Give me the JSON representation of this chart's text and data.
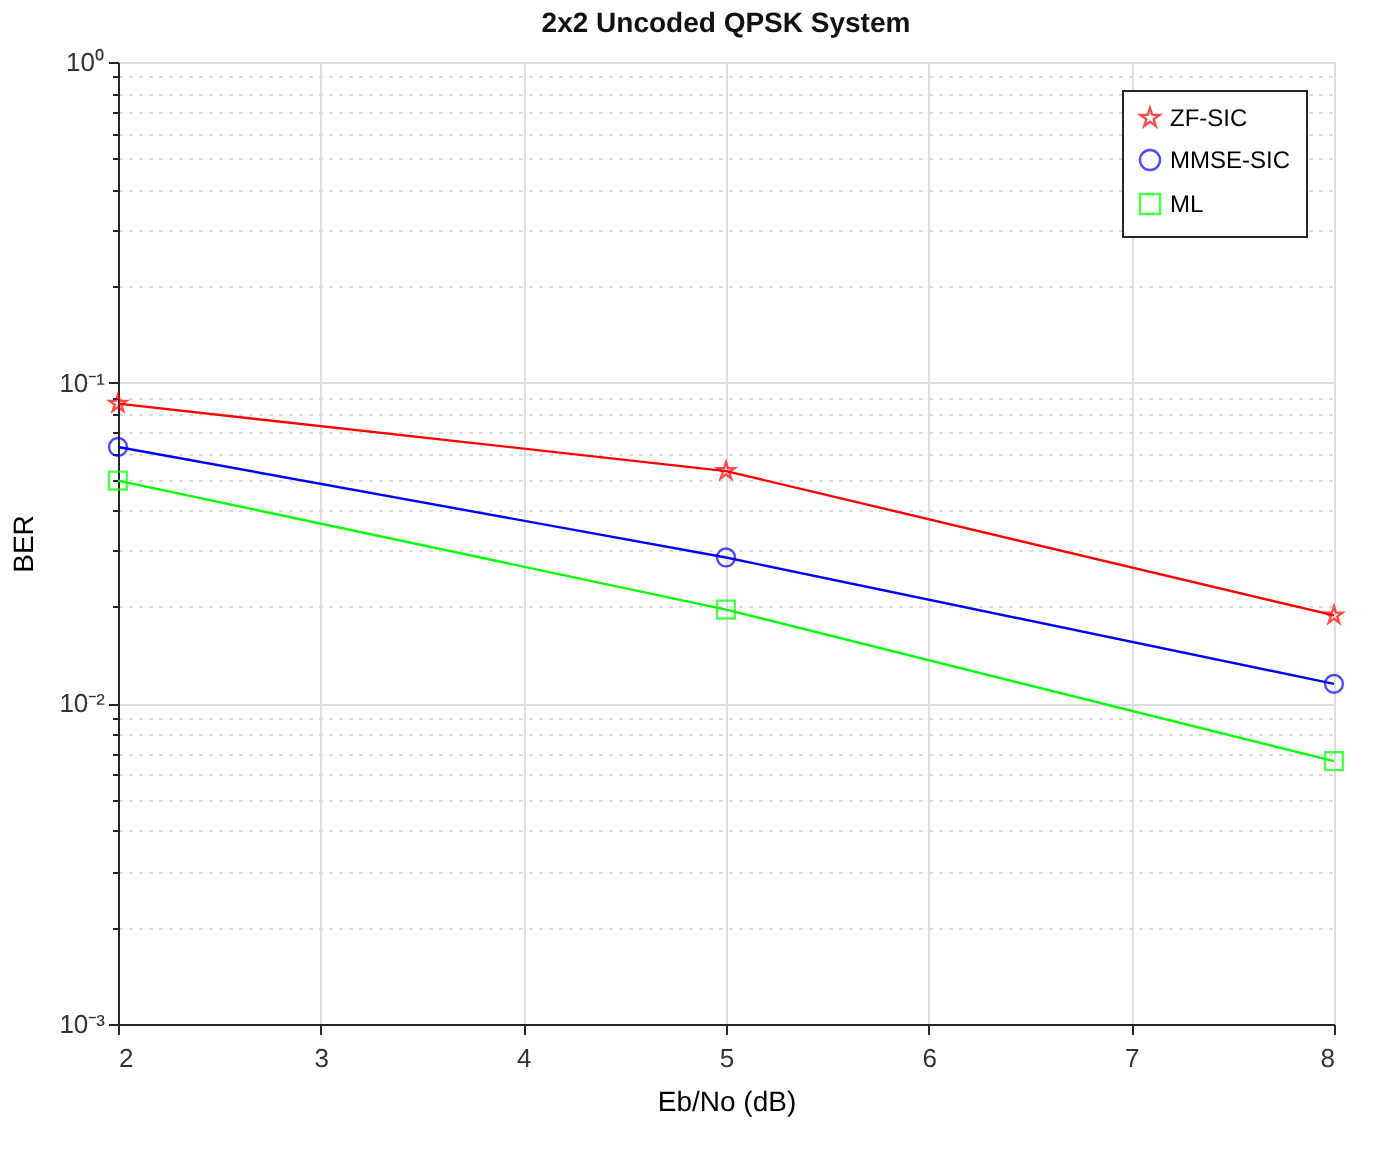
{
  "chart_data": {
    "type": "line",
    "title": "2x2 Uncoded QPSK System",
    "xlabel": "Eb/No (dB)",
    "ylabel": "BER",
    "x": [
      2,
      5,
      8
    ],
    "series": [
      {
        "name": "ZF-SIC",
        "color": "#ff0000",
        "marker": "star",
        "values": [
          0.086,
          0.053,
          0.0188
        ]
      },
      {
        "name": "MMSE-SIC",
        "color": "#0000ff",
        "marker": "circle",
        "values": [
          0.063,
          0.0285,
          0.0115
        ]
      },
      {
        "name": "ML",
        "color": "#00ff00",
        "marker": "square",
        "values": [
          0.0495,
          0.0196,
          0.0066
        ]
      }
    ],
    "log": "y",
    "grid": true,
    "legend": "top right",
    "line_style": "solid",
    "xlim": [
      2,
      8
    ],
    "xticks": [
      2,
      3,
      4,
      5,
      6,
      7,
      8
    ],
    "ylim": [
      0.001,
      1
    ],
    "yticks": [
      {
        "value": 0.001,
        "label": "10⁻³"
      },
      {
        "value": 0.002,
        "label": null
      },
      {
        "value": 0.003,
        "label": null
      },
      {
        "value": 0.004,
        "label": null
      },
      {
        "value": 0.005,
        "label": null
      },
      {
        "value": 0.006,
        "label": null
      },
      {
        "value": 0.007,
        "label": null
      },
      {
        "value": 0.008,
        "label": null
      },
      {
        "value": 0.009,
        "label": null
      },
      {
        "value": 0.01,
        "label": "10⁻²"
      },
      {
        "value": 0.02,
        "label": null
      },
      {
        "value": 0.03,
        "label": null
      },
      {
        "value": 0.04,
        "label": null
      },
      {
        "value": 0.05,
        "label": null
      },
      {
        "value": 0.06,
        "label": null
      },
      {
        "value": 0.07,
        "label": null
      },
      {
        "value": 0.08,
        "label": null
      },
      {
        "value": 0.09,
        "label": null
      },
      {
        "value": 0.1,
        "label": "10⁻¹"
      },
      {
        "value": 0.2,
        "label": null
      },
      {
        "value": 0.3,
        "label": null
      },
      {
        "value": 0.4,
        "label": null
      },
      {
        "value": 0.5,
        "label": null
      },
      {
        "value": 0.6,
        "label": null
      },
      {
        "value": 0.7,
        "label": null
      },
      {
        "value": 0.8,
        "label": null
      },
      {
        "value": 0.9,
        "label": null
      },
      {
        "value": 1,
        "label": "10⁰"
      }
    ]
  }
}
